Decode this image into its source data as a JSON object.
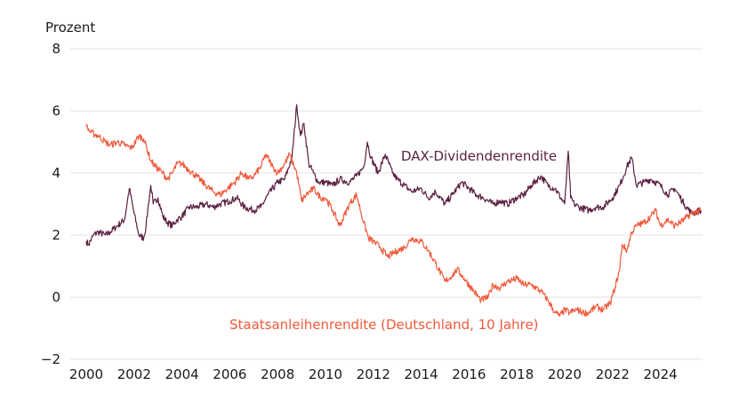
{
  "chart_data": {
    "type": "line",
    "title": "",
    "ylabel": "Prozent",
    "xlabel": "",
    "ylim": [
      -2,
      8
    ],
    "xlim": [
      2000,
      2025.7
    ],
    "grid": true,
    "yticks": [
      -2,
      0,
      2,
      4,
      6,
      8
    ],
    "ytick_labels": [
      "−2",
      "0",
      "2",
      "4",
      "6",
      "8"
    ],
    "xticks": [
      2000,
      2002,
      2004,
      2006,
      2008,
      2010,
      2012,
      2014,
      2016,
      2018,
      2020,
      2022,
      2024
    ],
    "xtick_labels": [
      "2000",
      "2002",
      "2004",
      "2006",
      "2008",
      "2010",
      "2012",
      "2014",
      "2016",
      "2018",
      "2020",
      "2022",
      "2024"
    ],
    "legend": "inline-annotations",
    "series": [
      {
        "name": "DAX-Dividendenrendite",
        "color": "#5b1f40",
        "label_position": "center-top",
        "x": [
          2000.0,
          2000.1,
          2000.3,
          2000.5,
          2000.8,
          2001.0,
          2001.3,
          2001.6,
          2001.8,
          2002.0,
          2002.2,
          2002.4,
          2002.5,
          2002.6,
          2002.7,
          2002.8,
          2003.0,
          2003.2,
          2003.4,
          2003.6,
          2003.8,
          2004.0,
          2004.3,
          2004.6,
          2005.0,
          2005.3,
          2005.6,
          2006.0,
          2006.3,
          2006.6,
          2007.0,
          2007.3,
          2007.6,
          2008.0,
          2008.3,
          2008.6,
          2008.8,
          2008.95,
          2009.1,
          2009.3,
          2009.5,
          2009.7,
          2010.0,
          2010.3,
          2010.6,
          2011.0,
          2011.3,
          2011.6,
          2011.75,
          2011.9,
          2012.2,
          2012.5,
          2012.8,
          2013.0,
          2013.3,
          2013.6,
          2014.0,
          2014.3,
          2014.6,
          2015.0,
          2015.3,
          2015.7,
          2016.0,
          2016.3,
          2016.6,
          2017.0,
          2017.3,
          2017.6,
          2018.0,
          2018.3,
          2018.6,
          2019.0,
          2019.3,
          2019.6,
          2020.0,
          2020.15,
          2020.25,
          2020.4,
          2020.6,
          2021.0,
          2021.3,
          2021.6,
          2022.0,
          2022.3,
          2022.6,
          2022.8,
          2023.0,
          2023.3,
          2023.6,
          2024.0,
          2024.3,
          2024.6,
          2025.0,
          2025.3,
          2025.7
        ],
        "values": [
          1.8,
          1.7,
          2.0,
          2.1,
          2.0,
          2.1,
          2.3,
          2.5,
          3.5,
          2.7,
          2.0,
          1.9,
          2.3,
          3.0,
          3.6,
          3.0,
          3.2,
          2.6,
          2.4,
          2.3,
          2.5,
          2.6,
          2.9,
          2.9,
          3.0,
          2.9,
          3.0,
          3.1,
          3.2,
          2.9,
          2.8,
          2.9,
          3.3,
          3.7,
          3.8,
          4.5,
          6.2,
          5.2,
          5.6,
          4.3,
          4.0,
          3.7,
          3.7,
          3.6,
          3.8,
          3.7,
          3.9,
          4.2,
          5.0,
          4.5,
          4.0,
          4.6,
          4.0,
          3.8,
          3.6,
          3.4,
          3.5,
          3.2,
          3.4,
          3.0,
          3.3,
          3.7,
          3.5,
          3.3,
          3.2,
          3.0,
          3.1,
          3.0,
          3.2,
          3.3,
          3.6,
          3.9,
          3.6,
          3.5,
          3.0,
          4.7,
          3.2,
          3.0,
          2.9,
          2.8,
          2.9,
          2.9,
          3.2,
          3.6,
          4.2,
          4.5,
          3.6,
          3.7,
          3.8,
          3.6,
          3.3,
          3.5,
          3.0,
          2.7,
          2.8
        ]
      },
      {
        "name": "Staatsanleihenrendite (Deutschland, 10 Jahre)",
        "color": "#f0593a",
        "label_position": "bottom-center",
        "x": [
          2000.0,
          2000.2,
          2000.5,
          2000.8,
          2001.0,
          2001.3,
          2001.6,
          2001.9,
          2002.2,
          2002.4,
          2002.7,
          2002.9,
          2003.2,
          2003.4,
          2003.6,
          2003.8,
          2004.0,
          2004.3,
          2004.6,
          2005.0,
          2005.3,
          2005.6,
          2005.9,
          2006.2,
          2006.5,
          2006.8,
          2007.0,
          2007.3,
          2007.5,
          2007.8,
          2008.0,
          2008.3,
          2008.5,
          2008.8,
          2009.0,
          2009.2,
          2009.5,
          2009.8,
          2010.0,
          2010.3,
          2010.6,
          2011.0,
          2011.3,
          2011.6,
          2011.8,
          2012.0,
          2012.3,
          2012.6,
          2013.0,
          2013.3,
          2013.6,
          2014.0,
          2014.3,
          2014.6,
          2015.0,
          2015.3,
          2015.5,
          2015.8,
          2016.2,
          2016.5,
          2016.8,
          2017.0,
          2017.3,
          2017.6,
          2018.0,
          2018.3,
          2018.6,
          2019.0,
          2019.3,
          2019.6,
          2019.8,
          2020.0,
          2020.2,
          2020.5,
          2020.8,
          2021.0,
          2021.3,
          2021.6,
          2021.9,
          2022.1,
          2022.3,
          2022.4,
          2022.6,
          2022.8,
          2023.0,
          2023.3,
          2023.6,
          2023.8,
          2024.0,
          2024.3,
          2024.6,
          2025.0,
          2025.3,
          2025.7
        ],
        "values": [
          5.5,
          5.3,
          5.2,
          5.0,
          4.9,
          5.0,
          4.9,
          4.8,
          5.2,
          5.1,
          4.4,
          4.2,
          4.0,
          3.8,
          4.0,
          4.3,
          4.3,
          4.1,
          3.9,
          3.6,
          3.4,
          3.3,
          3.5,
          3.7,
          4.0,
          3.8,
          3.9,
          4.2,
          4.6,
          4.2,
          4.0,
          4.3,
          4.6,
          4.0,
          3.1,
          3.3,
          3.5,
          3.2,
          3.2,
          2.8,
          2.3,
          3.0,
          3.3,
          2.4,
          1.9,
          1.8,
          1.6,
          1.3,
          1.5,
          1.6,
          1.9,
          1.8,
          1.5,
          1.1,
          0.5,
          0.7,
          0.9,
          0.6,
          0.2,
          -0.1,
          0.0,
          0.4,
          0.3,
          0.5,
          0.6,
          0.4,
          0.4,
          0.2,
          -0.1,
          -0.5,
          -0.6,
          -0.4,
          -0.5,
          -0.4,
          -0.5,
          -0.5,
          -0.3,
          -0.4,
          -0.2,
          0.3,
          0.9,
          1.7,
          1.5,
          2.1,
          2.3,
          2.4,
          2.6,
          2.8,
          2.3,
          2.5,
          2.3,
          2.5,
          2.7,
          2.8
        ]
      }
    ]
  }
}
